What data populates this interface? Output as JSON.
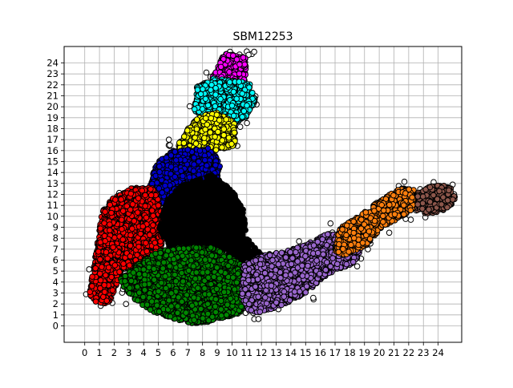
{
  "chart_data": {
    "type": "scatter",
    "title": "SBM12253",
    "xlabel": "",
    "ylabel": "",
    "xlim": [
      -1.4,
      25.6
    ],
    "ylim": [
      -1.5,
      25.5
    ],
    "x_ticks": [
      0,
      1,
      2,
      3,
      4,
      5,
      6,
      7,
      8,
      9,
      10,
      11,
      12,
      13,
      14,
      15,
      16,
      17,
      18,
      19,
      20,
      21,
      22,
      23,
      24
    ],
    "y_ticks": [
      0,
      1,
      2,
      3,
      4,
      5,
      6,
      7,
      8,
      9,
      10,
      11,
      12,
      13,
      14,
      15,
      16,
      17,
      18,
      19,
      20,
      21,
      22,
      23,
      24
    ],
    "grid": true,
    "legend": "none",
    "clusters": [
      {
        "color": "#ff00ff",
        "region": [
          [
            8.6,
            22.5
          ],
          [
            9.5,
            24.9
          ],
          [
            11.0,
            24.5
          ],
          [
            10.9,
            22.0
          ],
          [
            8.7,
            22.0
          ]
        ]
      },
      {
        "color": "#00ffff",
        "region": [
          [
            7.4,
            19.6
          ],
          [
            7.6,
            21.8
          ],
          [
            8.8,
            22.6
          ],
          [
            11.2,
            22.2
          ],
          [
            11.6,
            20.5
          ],
          [
            11.0,
            19.0
          ],
          [
            9.8,
            18.2
          ],
          [
            8.0,
            19.2
          ]
        ]
      },
      {
        "color": "#ffff00",
        "region": [
          [
            6.3,
            16.5
          ],
          [
            7.4,
            18.8
          ],
          [
            8.8,
            19.6
          ],
          [
            10.2,
            18.6
          ],
          [
            10.2,
            16.3
          ],
          [
            8.4,
            15.8
          ],
          [
            6.6,
            15.8
          ]
        ]
      },
      {
        "color": "#0000cc",
        "region": [
          [
            4.3,
            12.0
          ],
          [
            4.8,
            14.8
          ],
          [
            6.0,
            16.0
          ],
          [
            8.4,
            16.2
          ],
          [
            9.2,
            15.0
          ],
          [
            9.0,
            12.0
          ],
          [
            7.2,
            11.0
          ],
          [
            5.5,
            11.0
          ]
        ]
      },
      {
        "color": "#ff0000",
        "region": [
          [
            0.3,
            3.0
          ],
          [
            0.6,
            5.2
          ],
          [
            0.9,
            8.0
          ],
          [
            1.2,
            10.5
          ],
          [
            2.0,
            11.8
          ],
          [
            3.2,
            12.6
          ],
          [
            4.8,
            12.6
          ],
          [
            5.2,
            10.2
          ],
          [
            5.3,
            8.0
          ],
          [
            5.2,
            6.2
          ],
          [
            4.2,
            5.4
          ],
          [
            2.6,
            5.2
          ],
          [
            2.0,
            3.2
          ],
          [
            1.6,
            2.0
          ],
          [
            0.6,
            2.2
          ]
        ]
      },
      {
        "color": "#000000",
        "region": [
          [
            5.0,
            9.0
          ],
          [
            5.6,
            11.6
          ],
          [
            6.6,
            12.8
          ],
          [
            8.6,
            13.8
          ],
          [
            10.0,
            12.4
          ],
          [
            10.8,
            10.5
          ],
          [
            11.0,
            8.0
          ],
          [
            11.8,
            6.8
          ],
          [
            12.4,
            5.6
          ],
          [
            11.2,
            5.8
          ],
          [
            10.0,
            6.0
          ],
          [
            9.2,
            7.2
          ],
          [
            8.4,
            7.0
          ],
          [
            5.8,
            7.0
          ]
        ]
      },
      {
        "color": "#008800",
        "region": [
          [
            2.4,
            4.2
          ],
          [
            3.2,
            5.4
          ],
          [
            5.0,
            6.8
          ],
          [
            6.6,
            7.2
          ],
          [
            8.6,
            7.2
          ],
          [
            10.0,
            6.2
          ],
          [
            11.2,
            5.0
          ],
          [
            11.0,
            3.0
          ],
          [
            10.6,
            1.2
          ],
          [
            8.6,
            0.4
          ],
          [
            7.2,
            0.2
          ],
          [
            6.2,
            0.6
          ],
          [
            4.4,
            1.4
          ],
          [
            3.4,
            2.4
          ],
          [
            2.6,
            3.6
          ]
        ]
      },
      {
        "color": "#9966cc",
        "region": [
          [
            10.6,
            3.0
          ],
          [
            10.8,
            5.6
          ],
          [
            12.0,
            6.4
          ],
          [
            13.6,
            6.8
          ],
          [
            15.0,
            7.4
          ],
          [
            16.4,
            8.4
          ],
          [
            17.8,
            8.4
          ],
          [
            18.8,
            7.2
          ],
          [
            18.4,
            5.8
          ],
          [
            16.6,
            4.8
          ],
          [
            15.0,
            3.0
          ],
          [
            13.6,
            2.0
          ],
          [
            12.0,
            1.2
          ],
          [
            11.0,
            1.4
          ]
        ]
      },
      {
        "color": "#ff7f0e",
        "region": [
          [
            17.0,
            6.8
          ],
          [
            17.2,
            8.8
          ],
          [
            18.6,
            10.0
          ],
          [
            20.0,
            11.4
          ],
          [
            21.4,
            12.6
          ],
          [
            22.4,
            12.4
          ],
          [
            22.6,
            11.0
          ],
          [
            21.6,
            10.0
          ],
          [
            20.2,
            9.0
          ],
          [
            19.0,
            7.2
          ],
          [
            17.6,
            6.4
          ]
        ]
      },
      {
        "color": "#8c564b",
        "region": [
          [
            22.6,
            10.4
          ],
          [
            22.6,
            12.2
          ],
          [
            23.6,
            12.8
          ],
          [
            24.8,
            12.8
          ],
          [
            25.2,
            11.6
          ],
          [
            24.6,
            10.6
          ],
          [
            23.4,
            10.2
          ]
        ]
      }
    ],
    "outlier_color": "#ffffff"
  }
}
